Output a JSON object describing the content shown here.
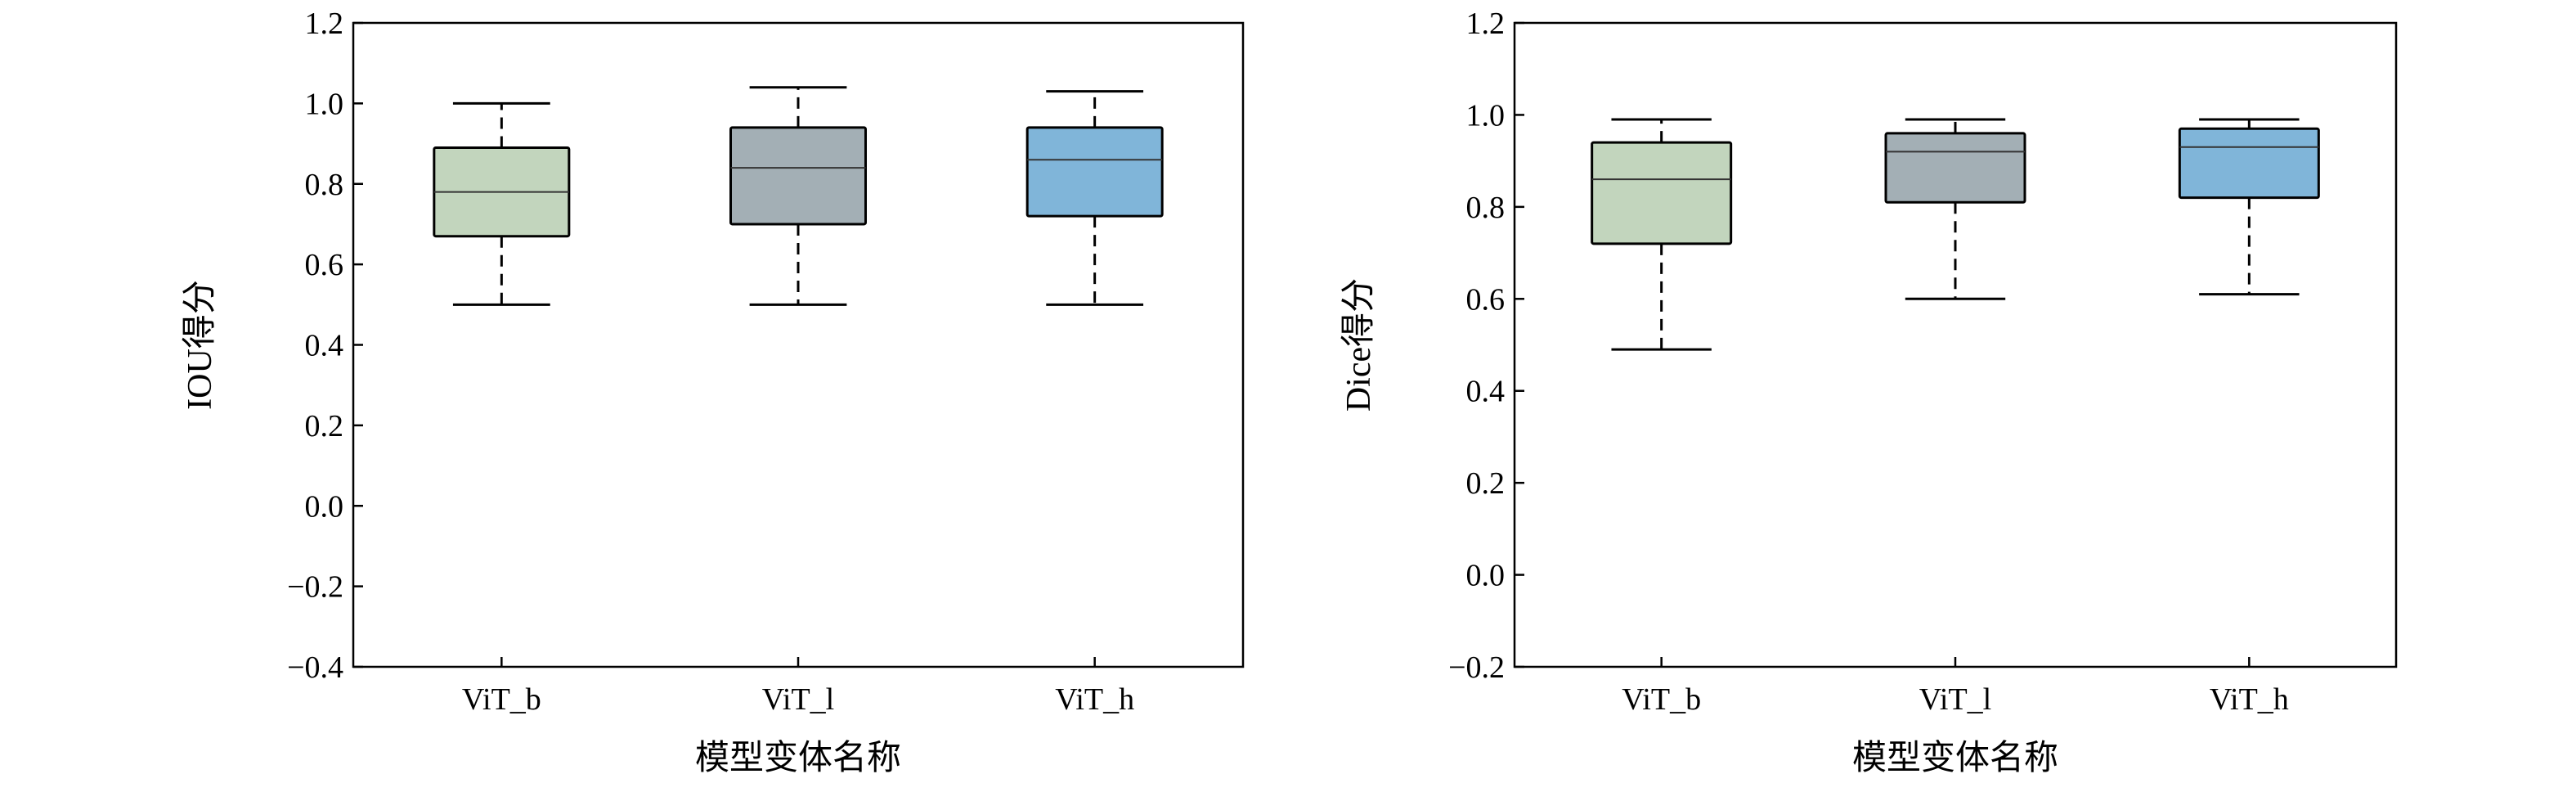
{
  "chart_data": [
    {
      "type": "box",
      "xlabel": "模型变体名称",
      "ylabel": "IOU得分",
      "ylim": [
        -0.4,
        1.2
      ],
      "yticks": [
        -0.4,
        -0.2,
        0.0,
        0.2,
        0.4,
        0.6,
        0.8,
        1.0,
        1.2
      ],
      "ytick_labels": [
        "−0.4",
        "−0.2",
        "0.0",
        "0.2",
        "0.4",
        "0.6",
        "0.8",
        "1.0",
        "1.2"
      ],
      "categories": [
        "ViT_b",
        "ViT_l",
        "ViT_h"
      ],
      "boxes": [
        {
          "category": "ViT_b",
          "whislo": 0.5,
          "q1": 0.67,
          "med": 0.78,
          "q3": 0.89,
          "whishi": 1.0,
          "color": "#c2d5bd"
        },
        {
          "category": "ViT_l",
          "whislo": 0.5,
          "q1": 0.7,
          "med": 0.84,
          "q3": 0.94,
          "whishi": 1.04,
          "color": "#a3afb5"
        },
        {
          "category": "ViT_h",
          "whislo": 0.5,
          "q1": 0.72,
          "med": 0.86,
          "q3": 0.94,
          "whishi": 1.03,
          "color": "#80b5d9"
        }
      ],
      "grid": false
    },
    {
      "type": "box",
      "xlabel": "模型变体名称",
      "ylabel": "Dice得分",
      "ylim": [
        -0.2,
        1.2
      ],
      "yticks": [
        -0.2,
        0.0,
        0.2,
        0.4,
        0.6,
        0.8,
        1.0,
        1.2
      ],
      "ytick_labels": [
        "−0.2",
        "0.0",
        "0.2",
        "0.4",
        "0.6",
        "0.8",
        "1.0",
        "1.2"
      ],
      "categories": [
        "ViT_b",
        "ViT_l",
        "ViT_h"
      ],
      "boxes": [
        {
          "category": "ViT_b",
          "whislo": 0.49,
          "q1": 0.72,
          "med": 0.86,
          "q3": 0.94,
          "whishi": 0.99,
          "color": "#c2d5bd"
        },
        {
          "category": "ViT_l",
          "whislo": 0.6,
          "q1": 0.81,
          "med": 0.92,
          "q3": 0.96,
          "whishi": 0.99,
          "color": "#a3afb5"
        },
        {
          "category": "ViT_h",
          "whislo": 0.61,
          "q1": 0.82,
          "med": 0.93,
          "q3": 0.97,
          "whishi": 0.99,
          "color": "#80b5d9"
        }
      ],
      "grid": false
    }
  ]
}
